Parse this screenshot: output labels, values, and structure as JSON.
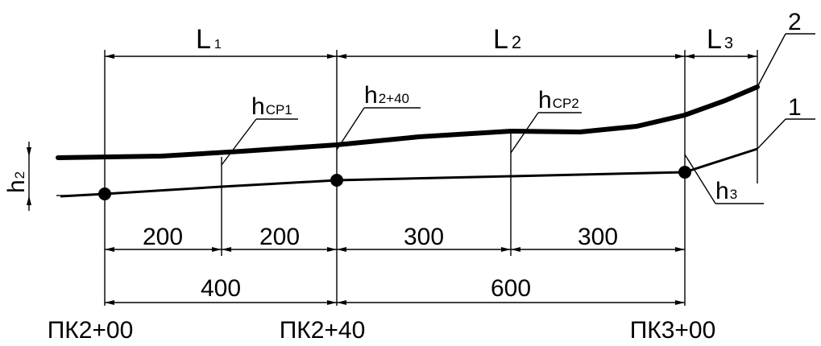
{
  "dimensions_top": {
    "L1": {
      "main": "L",
      "sub": "1"
    },
    "L2": {
      "main": "L",
      "sub": "2"
    },
    "L3": {
      "main": "L",
      "sub": "3"
    }
  },
  "height_labels": {
    "h_cp1": {
      "main": "h",
      "sub": "CP1"
    },
    "h_2_40": {
      "main": "h",
      "sub": "2+40"
    },
    "h_cp2": {
      "main": "h",
      "sub": "CP2"
    },
    "h_2": {
      "main": "h",
      "sub": "2"
    },
    "h_3": {
      "main": "h",
      "sub": "3"
    }
  },
  "curve_labels": {
    "line1": "1",
    "line2": "2"
  },
  "segments_row1": [
    "200",
    "200",
    "300",
    "300"
  ],
  "segments_row2": [
    "400",
    "600"
  ],
  "stations": [
    "ПК2+00",
    "ПК2+40",
    "ПК3+00"
  ]
}
